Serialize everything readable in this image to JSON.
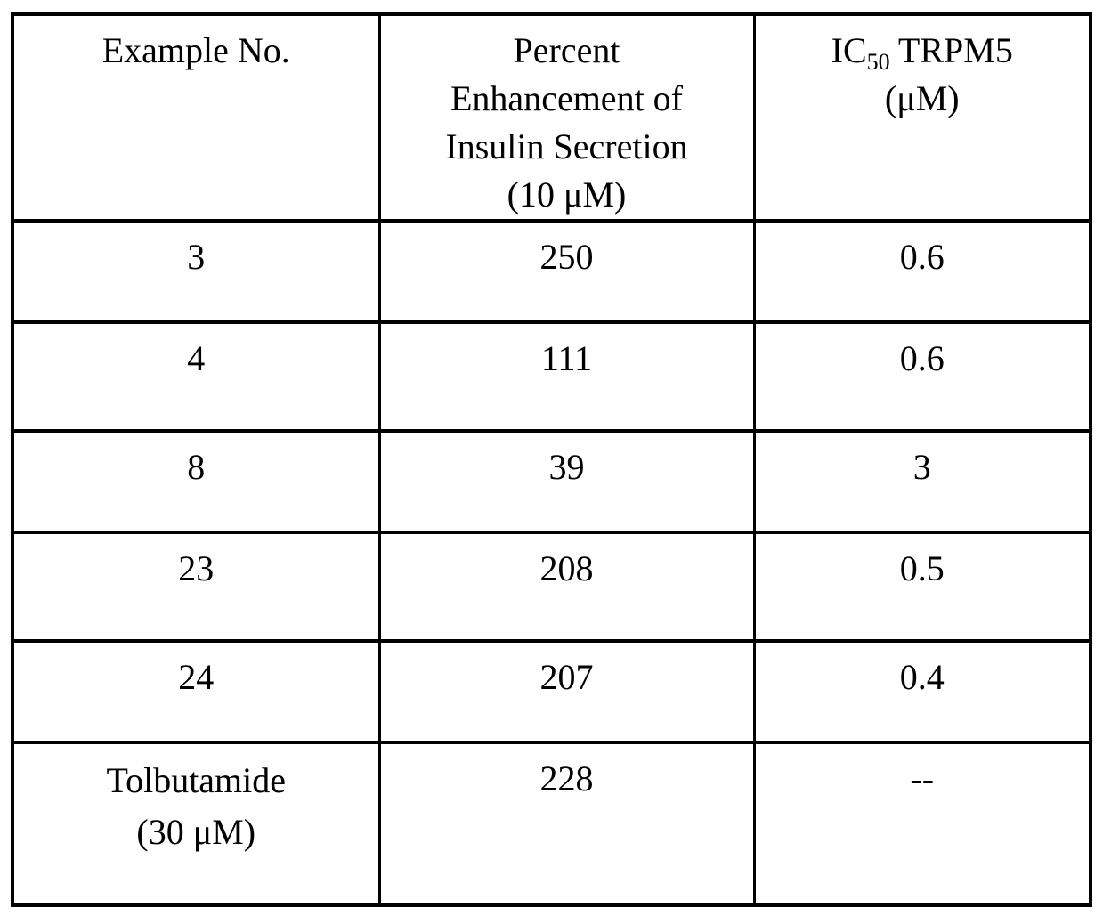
{
  "table": {
    "header": {
      "col1": "Example No.",
      "col2_lines": [
        "Percent",
        "Enhancement of",
        "Insulin Secretion",
        "(10 μM)"
      ],
      "col3_prefix": "IC",
      "col3_sub": "50",
      "col3_suffix": " TRPM5",
      "col3_line2": "(μM)"
    },
    "rows": [
      {
        "example": "3",
        "percent": "250",
        "ic50": "0.6"
      },
      {
        "example": "4",
        "percent": "111",
        "ic50": "0.6"
      },
      {
        "example": "8",
        "percent": "39",
        "ic50": "3"
      },
      {
        "example": "23",
        "percent": "208",
        "ic50": "0.5"
      },
      {
        "example": "24",
        "percent": "207",
        "ic50": "0.4"
      },
      {
        "example_lines": [
          "Tolbutamide",
          "(30 μM)"
        ],
        "percent": "228",
        "ic50": "--"
      }
    ],
    "colors": {
      "border": "#000000",
      "background": "#ffffff",
      "text": "#000000"
    }
  }
}
